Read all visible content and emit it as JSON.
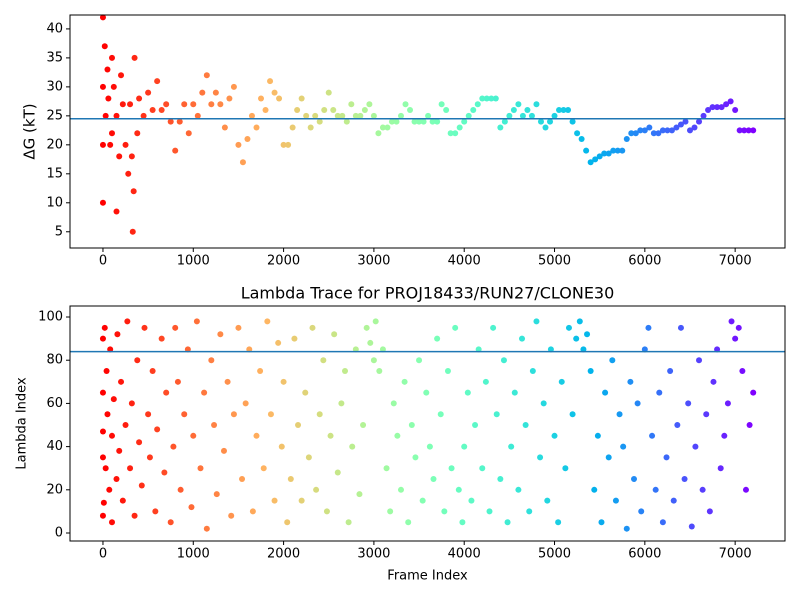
{
  "chart_data": [
    {
      "type": "scatter",
      "ylabel": "ΔG (kT)",
      "colormap": "rainbow_r",
      "xlim": [
        -365,
        7552
      ],
      "ylim": [
        2.2,
        42.4
      ],
      "xticks": [
        0,
        1000,
        2000,
        3000,
        4000,
        5000,
        6000,
        7000
      ],
      "yticks": [
        5,
        10,
        15,
        20,
        25,
        30,
        35,
        40
      ],
      "hline": 24.5,
      "hline_color": "#1f77b4",
      "x": [
        0,
        0,
        0,
        0,
        20,
        30,
        50,
        60,
        80,
        100,
        100,
        120,
        150,
        150,
        180,
        200,
        220,
        250,
        280,
        300,
        320,
        330,
        340,
        350,
        380,
        400,
        450,
        500,
        550,
        600,
        650,
        700,
        750,
        800,
        850,
        900,
        950,
        1000,
        1050,
        1100,
        1150,
        1200,
        1250,
        1300,
        1350,
        1400,
        1450,
        1500,
        1550,
        1600,
        1650,
        1700,
        1750,
        1800,
        1850,
        1900,
        1950,
        2000,
        2050,
        2100,
        2150,
        2200,
        2250,
        2300,
        2350,
        2400,
        2450,
        2500,
        2550,
        2600,
        2650,
        2700,
        2750,
        2800,
        2850,
        2900,
        2950,
        3000,
        3050,
        3100,
        3150,
        3200,
        3250,
        3300,
        3350,
        3400,
        3450,
        3500,
        3550,
        3600,
        3650,
        3700,
        3750,
        3800,
        3850,
        3900,
        3950,
        4000,
        4050,
        4100,
        4150,
        4200,
        4250,
        4300,
        4350,
        4400,
        4450,
        4500,
        4550,
        4600,
        4650,
        4700,
        4750,
        4800,
        4850,
        4900,
        4950,
        5000,
        5050,
        5100,
        5150,
        5200,
        5250,
        5300,
        5350,
        5400,
        5450,
        5500,
        5550,
        5600,
        5650,
        5700,
        5750,
        5800,
        5850,
        5900,
        5950,
        6000,
        6050,
        6100,
        6150,
        6200,
        6250,
        6300,
        6350,
        6400,
        6450,
        6500,
        6550,
        6600,
        6650,
        6700,
        6750,
        6800,
        6850,
        6900,
        6950,
        7000,
        7050,
        7100,
        7150,
        7200
      ],
      "values": [
        42,
        30,
        10,
        20,
        37,
        25,
        33,
        28,
        20,
        35,
        22,
        30,
        25,
        8.5,
        18,
        32,
        27,
        20,
        15,
        27,
        18,
        5,
        12,
        35,
        22,
        28,
        25,
        29,
        26,
        31,
        26,
        27,
        24,
        19,
        24,
        27,
        22,
        27,
        25,
        29,
        32,
        27,
        29,
        27,
        23,
        28,
        30,
        20,
        17,
        21,
        25,
        23,
        28,
        26,
        31,
        29,
        28,
        20,
        20,
        23,
        26,
        28,
        25,
        23,
        25,
        24,
        26,
        29,
        26,
        25,
        25,
        24,
        27,
        25,
        25,
        26,
        27,
        25,
        22,
        23,
        23,
        24,
        24,
        25,
        27,
        26,
        24,
        24,
        24,
        25,
        24,
        24,
        27,
        26,
        22,
        22,
        23,
        24,
        25,
        26,
        27,
        28,
        28,
        28,
        28,
        23,
        24,
        25,
        26,
        27,
        25,
        26,
        25,
        27,
        24,
        23,
        24,
        25,
        26,
        26,
        26,
        24,
        22,
        21,
        19,
        17,
        17.5,
        18,
        18.5,
        18.5,
        19,
        19,
        19,
        21,
        22,
        22,
        22.5,
        22.5,
        23,
        22,
        22,
        22.5,
        22.5,
        22.5,
        23,
        23.5,
        24,
        22.5,
        23,
        24,
        25,
        26,
        26.5,
        26.5,
        26.5,
        27,
        27.5,
        26,
        22.5,
        22.5,
        22.5,
        22.5
      ]
    },
    {
      "type": "scatter",
      "title": "Lambda Trace for PROJ18433/RUN27/CLONE30",
      "xlabel": "Frame Index",
      "ylabel": "Lambda Index",
      "colormap": "rainbow_r",
      "xlim": [
        -365,
        7552
      ],
      "ylim": [
        -3.7,
        105.1
      ],
      "xticks": [
        0,
        1000,
        2000,
        3000,
        4000,
        5000,
        6000,
        7000
      ],
      "yticks": [
        0,
        20,
        40,
        60,
        80,
        100
      ],
      "hline": 84,
      "hline_color": "#1f77b4",
      "x": [
        0,
        0,
        0,
        0,
        0,
        10,
        20,
        30,
        40,
        50,
        70,
        80,
        100,
        100,
        120,
        150,
        160,
        180,
        200,
        220,
        250,
        270,
        300,
        320,
        350,
        380,
        400,
        430,
        460,
        500,
        520,
        550,
        580,
        600,
        650,
        680,
        700,
        750,
        780,
        800,
        830,
        860,
        900,
        940,
        980,
        1000,
        1040,
        1080,
        1120,
        1150,
        1200,
        1230,
        1260,
        1300,
        1340,
        1380,
        1420,
        1450,
        1500,
        1540,
        1580,
        1620,
        1660,
        1700,
        1740,
        1780,
        1820,
        1860,
        1900,
        1940,
        1980,
        2000,
        2040,
        2080,
        2120,
        2160,
        2200,
        2240,
        2280,
        2320,
        2360,
        2400,
        2440,
        2480,
        2520,
        2560,
        2600,
        2640,
        2680,
        2720,
        2760,
        2800,
        2840,
        2880,
        2920,
        2960,
        3000,
        3020,
        3060,
        3100,
        3140,
        3180,
        3220,
        3260,
        3300,
        3340,
        3380,
        3420,
        3460,
        3500,
        3540,
        3580,
        3620,
        3660,
        3700,
        3740,
        3780,
        3820,
        3860,
        3900,
        3940,
        3980,
        4000,
        4040,
        4080,
        4120,
        4160,
        4200,
        4240,
        4280,
        4320,
        4360,
        4400,
        4440,
        4480,
        4520,
        4560,
        4600,
        4640,
        4680,
        4720,
        4760,
        4800,
        4840,
        4880,
        4920,
        4960,
        5000,
        5040,
        5080,
        5120,
        5160,
        5200,
        5240,
        5280,
        5320,
        5360,
        5400,
        5440,
        5480,
        5520,
        5560,
        5600,
        5640,
        5680,
        5720,
        5760,
        5800,
        5840,
        5880,
        5920,
        5960,
        6000,
        6040,
        6080,
        6120,
        6160,
        6200,
        6240,
        6280,
        6320,
        6360,
        6400,
        6440,
        6480,
        6520,
        6560,
        6600,
        6640,
        6680,
        6720,
        6760,
        6800,
        6840,
        6880,
        6920,
        6960,
        7000,
        7040,
        7080,
        7120,
        7160,
        7200
      ],
      "values": [
        8,
        35,
        47,
        65,
        90,
        14,
        95,
        30,
        75,
        55,
        20,
        85,
        5,
        45,
        62,
        25,
        92,
        38,
        70,
        15,
        50,
        98,
        30,
        60,
        8,
        80,
        42,
        22,
        95,
        55,
        35,
        75,
        10,
        48,
        90,
        28,
        65,
        5,
        40,
        95,
        70,
        20,
        55,
        85,
        12,
        45,
        98,
        30,
        65,
        2,
        80,
        50,
        18,
        92,
        38,
        70,
        8,
        55,
        95,
        25,
        60,
        85,
        10,
        45,
        75,
        30,
        98,
        55,
        15,
        88,
        40,
        70,
        5,
        25,
        90,
        50,
        15,
        65,
        35,
        95,
        20,
        55,
        80,
        10,
        45,
        92,
        28,
        60,
        75,
        5,
        40,
        85,
        18,
        50,
        95,
        88,
        80,
        98,
        75,
        85,
        30,
        10,
        60,
        45,
        20,
        70,
        5,
        50,
        35,
        80,
        15,
        65,
        40,
        25,
        90,
        55,
        10,
        75,
        30,
        95,
        20,
        5,
        40,
        65,
        15,
        50,
        85,
        30,
        70,
        10,
        95,
        55,
        25,
        80,
        5,
        40,
        65,
        20,
        90,
        50,
        10,
        75,
        98,
        35,
        60,
        15,
        85,
        45,
        5,
        70,
        30,
        95,
        55,
        90,
        98,
        85,
        92,
        75,
        20,
        45,
        5,
        65,
        35,
        80,
        15,
        55,
        40,
        2,
        70,
        25,
        60,
        10,
        85,
        95,
        45,
        20,
        65,
        5,
        35,
        75,
        15,
        50,
        95,
        25,
        60,
        3,
        40,
        80,
        20,
        55,
        10,
        70,
        85,
        30,
        45,
        60,
        98,
        90,
        95,
        75,
        20,
        50,
        65
      ]
    }
  ]
}
